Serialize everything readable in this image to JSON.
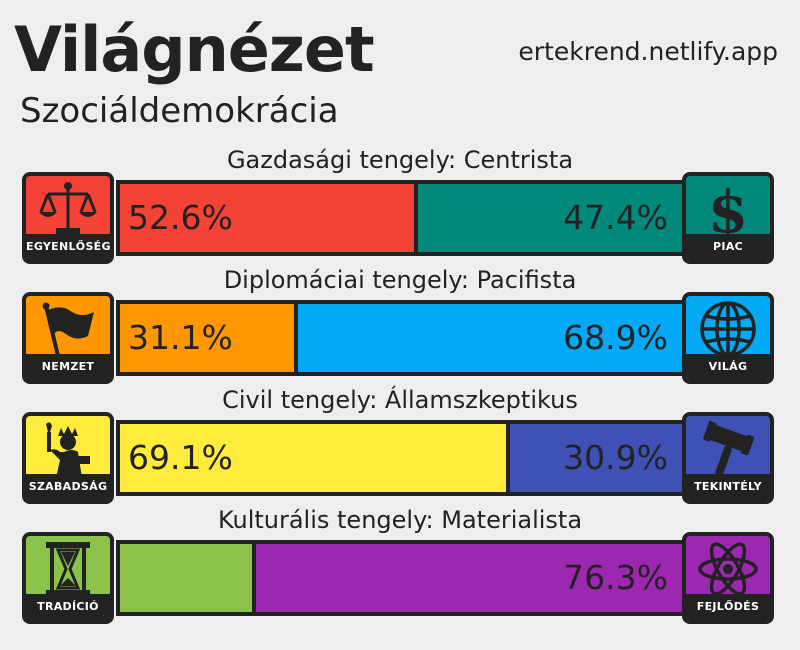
{
  "header": {
    "title": "Világnézet",
    "website": "ertekrend.netlify.app",
    "ideology": "Szociáldemokrácia"
  },
  "axes": [
    {
      "label": "Gazdasági tengely: Centrista",
      "left": {
        "name": "EGYENLŐSÉG",
        "icon": "scales-icon",
        "color": "#f44336",
        "value": 52.6,
        "text": "52.6%"
      },
      "right": {
        "name": "PIAC",
        "icon": "dollar-icon",
        "color": "#00897b",
        "value": 47.4,
        "text": "47.4%"
      }
    },
    {
      "label": "Diplomáciai tengely: Pacifista",
      "left": {
        "name": "NEMZET",
        "icon": "flag-icon",
        "color": "#ff9800",
        "value": 31.1,
        "text": "31.1%"
      },
      "right": {
        "name": "VILÁG",
        "icon": "globe-icon",
        "color": "#03a9f4",
        "value": 68.9,
        "text": "68.9%"
      }
    },
    {
      "label": "Civil tengely: Államszkeptikus",
      "left": {
        "name": "SZABADSÁG",
        "icon": "liberty-icon",
        "color": "#ffeb3b",
        "value": 69.1,
        "text": "69.1%"
      },
      "right": {
        "name": "TEKINTÉLY",
        "icon": "gavel-icon",
        "color": "#3f51b5",
        "value": 30.9,
        "text": "30.9%"
      }
    },
    {
      "label": "Kulturális tengely: Materialista",
      "left": {
        "name": "TRADÍCIÓ",
        "icon": "hourglass-icon",
        "color": "#8bc34a",
        "value": 23.7,
        "text": ""
      },
      "right": {
        "name": "FEJLŐDÉS",
        "icon": "atom-icon",
        "color": "#9c27b0",
        "value": 76.3,
        "text": "76.3%"
      }
    }
  ]
}
